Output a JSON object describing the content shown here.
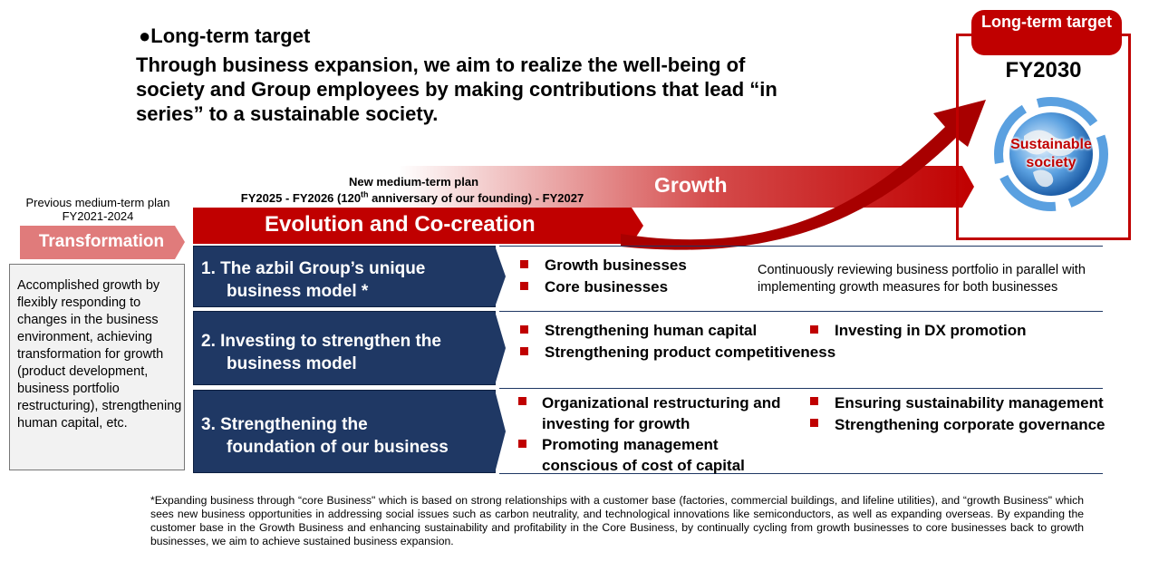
{
  "header": {
    "label": "Long-term target",
    "bullet": "●",
    "statement": "Through business expansion, we aim to realize the well-being of society and Group employees by making contributions that lead “in series” to a sustainable society."
  },
  "target": {
    "badge": "Long-term target",
    "year": "FY2030",
    "globe_label": "Sustainable society"
  },
  "previous_plan": {
    "title": "Previous medium-term plan",
    "period": "FY2021-2024",
    "theme": "Transformation",
    "summary": "Accomplished growth by flexibly responding to changes in the business environment, achieving transformation for growth (product development, business portfolio restructuring), strengthening human capital, etc."
  },
  "new_plan": {
    "title": "New medium-term plan",
    "period_prefix": "FY2025 - FY2026 (120",
    "period_sup": "th",
    "period_suffix": " anniversary of our founding) -  FY2027",
    "growth": "Growth",
    "theme": "Evolution and Co-creation"
  },
  "pillars": [
    {
      "line1": "1. The azbil Group’s unique",
      "line2": "business model *",
      "items": [
        "Growth businesses",
        "Core businesses"
      ],
      "note": "Continuously reviewing business portfolio in parallel with implementing growth measures for both businesses"
    },
    {
      "line1": "2. Investing to strengthen the",
      "line2": "business model",
      "items": [
        "Strengthening human capital",
        "Investing in DX promotion",
        "Strengthening product competitiveness"
      ]
    },
    {
      "line1": "3. Strengthening the",
      "line2": "foundation of our business",
      "items": [
        "Organizational restructuring and investing for growth",
        "Promoting management conscious of cost of capital",
        "Ensuring sustainability management",
        "Strengthening corporate governance"
      ]
    }
  ],
  "footnote": "*Expanding business through “core Business\" which is based on strong relationships with a customer base (factories, commercial buildings, and lifeline utilities), and “growth Business\" which sees new business opportunities in addressing social issues such as carbon neutrality, and technological innovations like semiconductors, as well as expanding overseas. By expanding the customer base in the Growth Business and enhancing sustainability and profitability in the Core Business, by continually cycling from growth businesses to core businesses back to growth businesses, we aim to achieve sustained business expansion.",
  "colors": {
    "red": "#c00000",
    "navy": "#1f3864",
    "pink": "#e07b7b"
  }
}
